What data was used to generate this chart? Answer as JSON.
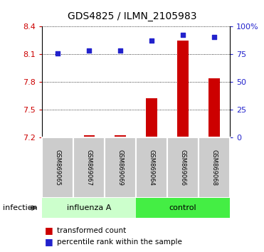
{
  "title": "GDS4825 / ILMN_2105983",
  "samples": [
    "GSM869065",
    "GSM869067",
    "GSM869069",
    "GSM869064",
    "GSM869066",
    "GSM869068"
  ],
  "group_labels": [
    "influenza A",
    "control"
  ],
  "influenza_color": "#ccffcc",
  "control_color": "#44ee44",
  "bar_color": "#cc0000",
  "dot_color": "#2222cc",
  "transformed_counts": [
    7.21,
    7.22,
    7.22,
    7.62,
    8.25,
    7.84
  ],
  "percentile_ranks": [
    75.5,
    78.5,
    78.5,
    87.0,
    92.5,
    90.5
  ],
  "ylim_left": [
    7.2,
    8.4
  ],
  "ylim_right": [
    0,
    100
  ],
  "yticks_left": [
    7.2,
    7.5,
    7.8,
    8.1,
    8.4
  ],
  "yticks_right": [
    0,
    25,
    50,
    75,
    100
  ],
  "left_tick_color": "#cc0000",
  "right_tick_color": "#2222cc",
  "sample_bg_color": "#cccccc",
  "bar_width": 0.35,
  "legend_bar_label": "transformed count",
  "legend_dot_label": "percentile rank within the sample",
  "infection_label": "infection"
}
